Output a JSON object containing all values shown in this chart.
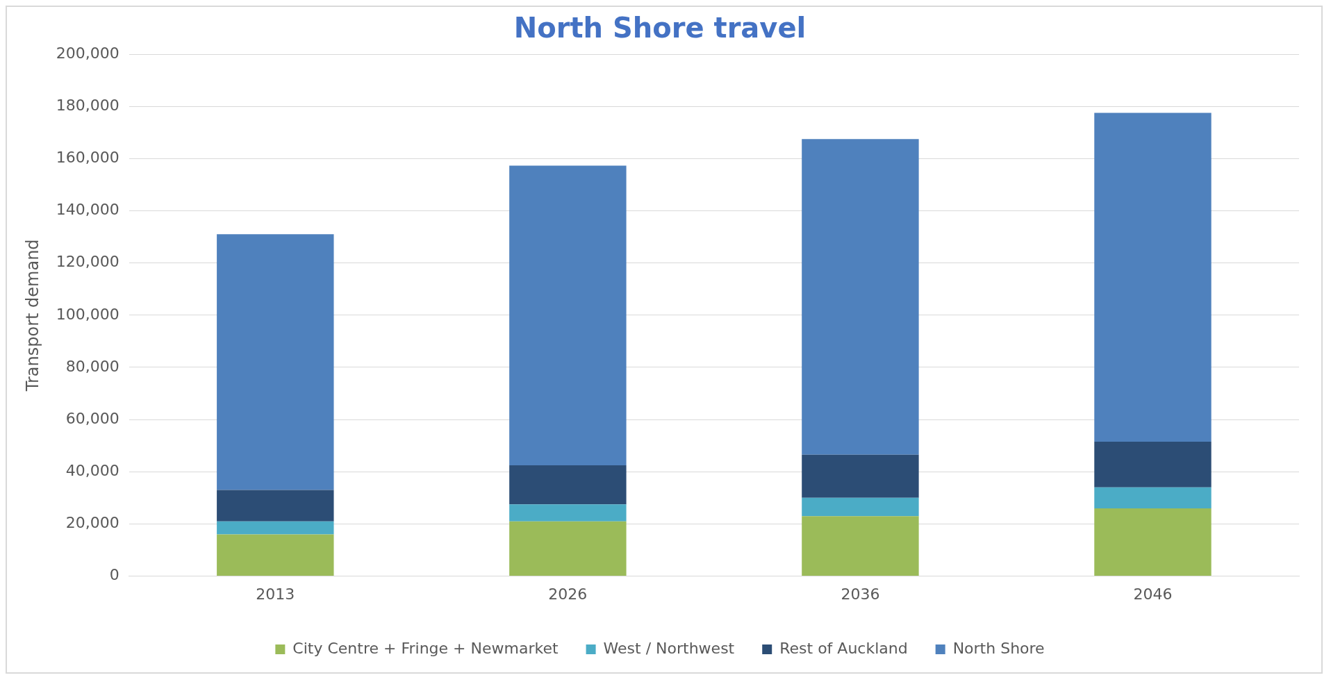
{
  "chart_data": {
    "type": "bar",
    "title": "North Shore travel",
    "ylabel": "Transport demand",
    "categories": [
      "2013",
      "2026",
      "2036",
      "2046"
    ],
    "stacked": true,
    "grid": "y",
    "legend": "bottom",
    "ylim": [
      0,
      200000
    ],
    "yticks": [
      {
        "value": 0,
        "label": "0"
      },
      {
        "value": 20000,
        "label": "20,000"
      },
      {
        "value": 40000,
        "label": "40,000"
      },
      {
        "value": 60000,
        "label": "60,000"
      },
      {
        "value": 80000,
        "label": "80,000"
      },
      {
        "value": 100000,
        "label": "100,000"
      },
      {
        "value": 120000,
        "label": "120,000"
      },
      {
        "value": 140000,
        "label": "140,000"
      },
      {
        "value": 160000,
        "label": "160,000"
      },
      {
        "value": 180000,
        "label": "180,000"
      },
      {
        "value": 200000,
        "label": "200,000"
      }
    ],
    "series": [
      {
        "name": "City Centre + Fringe + Newmarket",
        "color": "#9bbb59",
        "values": [
          16000,
          21000,
          23000,
          26000
        ]
      },
      {
        "name": "West / Northwest",
        "color": "#4bacc6",
        "values": [
          5000,
          6500,
          7000,
          8000
        ]
      },
      {
        "name": "Rest of Auckland",
        "color": "#2c4d75",
        "values": [
          12000,
          15000,
          16500,
          17500
        ]
      },
      {
        "name": "North Shore",
        "color": "#4f81bd",
        "values": [
          98000,
          114800,
          121000,
          126000
        ]
      }
    ]
  }
}
